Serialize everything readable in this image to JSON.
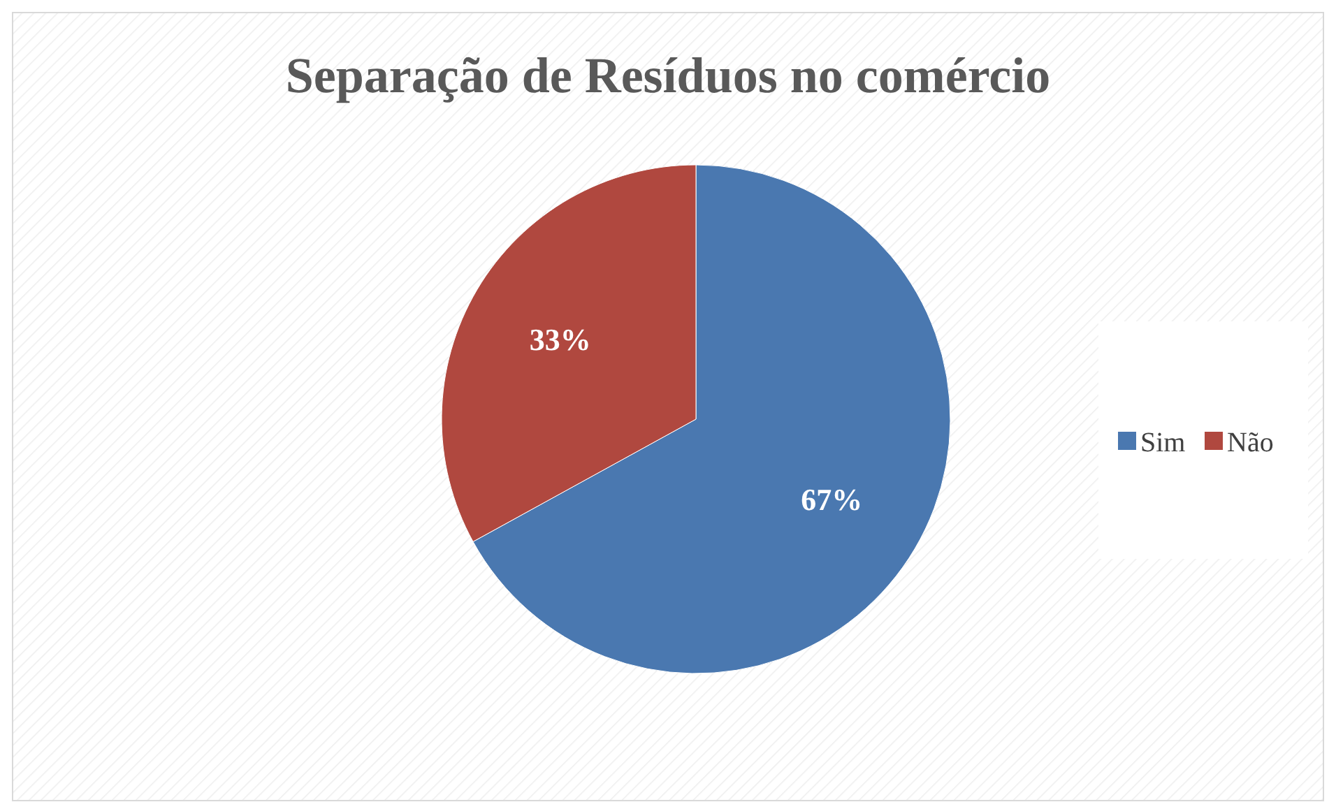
{
  "chart_data": {
    "type": "pie",
    "title": "Separação de Resíduos no comércio",
    "categories": [
      "Sim",
      "Não"
    ],
    "values": [
      67,
      33
    ],
    "colors": [
      "#4a78b0",
      "#b0483f"
    ],
    "value_labels": [
      "67%",
      "33%"
    ],
    "legend": "right"
  }
}
